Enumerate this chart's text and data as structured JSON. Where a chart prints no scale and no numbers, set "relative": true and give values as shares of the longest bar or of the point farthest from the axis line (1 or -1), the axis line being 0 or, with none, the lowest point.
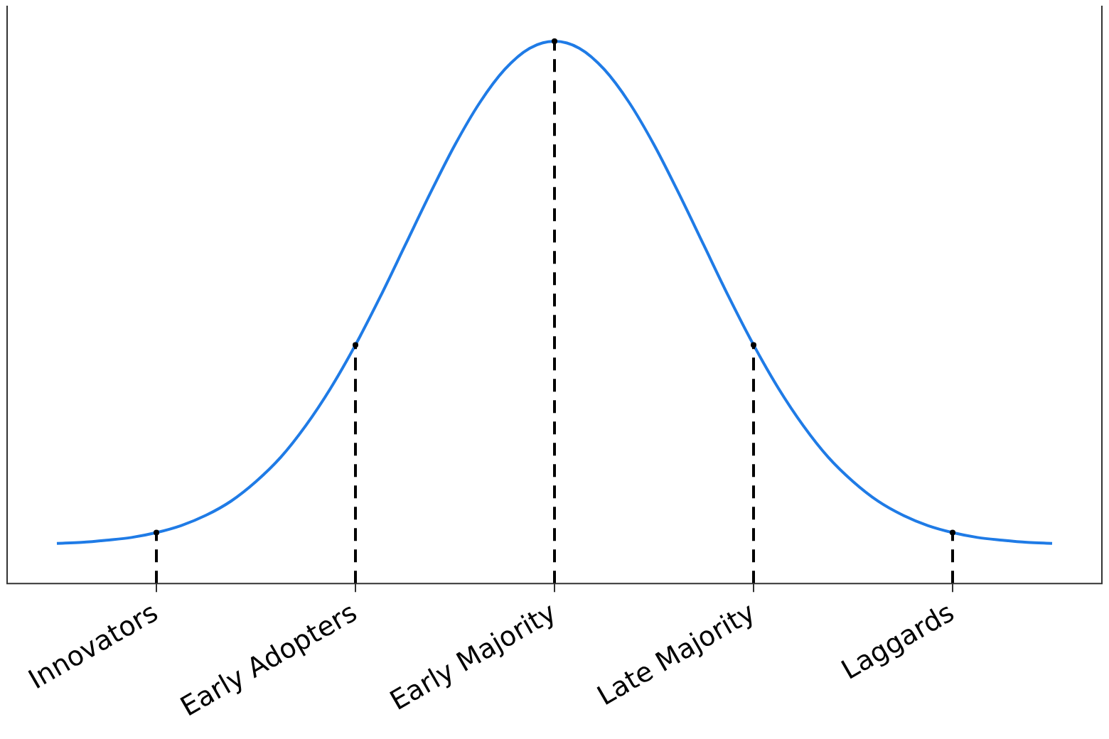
{
  "chart_data": {
    "type": "line",
    "relative": true,
    "categories": [
      null,
      null,
      null,
      null,
      "Innovators",
      null,
      null,
      null,
      null,
      null,
      null,
      null,
      "Early Adopters",
      null,
      null,
      null,
      null,
      null,
      null,
      null,
      "Early Majority",
      null,
      null,
      null,
      null,
      null,
      null,
      null,
      "Late Majority",
      null,
      null,
      null,
      null,
      null,
      null,
      null,
      "Laggards",
      null,
      null,
      null,
      null
    ],
    "series": [
      {
        "color": "#1f7be6",
        "values": [
          0.074,
          0.076,
          0.08,
          0.085,
          0.094,
          0.107,
          0.126,
          0.152,
          0.188,
          0.233,
          0.291,
          0.36,
          0.44,
          0.529,
          0.624,
          0.719,
          0.809,
          0.887,
          0.948,
          0.987,
          1,
          0.987,
          0.948,
          0.887,
          0.809,
          0.719,
          0.624,
          0.529,
          0.44,
          0.36,
          0.291,
          0.233,
          0.188,
          0.152,
          0.126,
          0.107,
          0.094,
          0.085,
          0.08,
          0.076,
          0.074
        ]
      },
      {
        "type": "lollipop",
        "color": "#000000",
        "line_style": "dashed",
        "marker": "circle",
        "values": [
          null,
          null,
          null,
          null,
          0.094,
          null,
          null,
          null,
          null,
          null,
          null,
          null,
          0.44,
          null,
          null,
          null,
          null,
          null,
          null,
          null,
          1,
          null,
          null,
          null,
          null,
          null,
          null,
          null,
          0.44,
          null,
          null,
          null,
          null,
          null,
          null,
          null,
          0.094,
          null,
          null,
          null,
          null
        ]
      }
    ]
  }
}
